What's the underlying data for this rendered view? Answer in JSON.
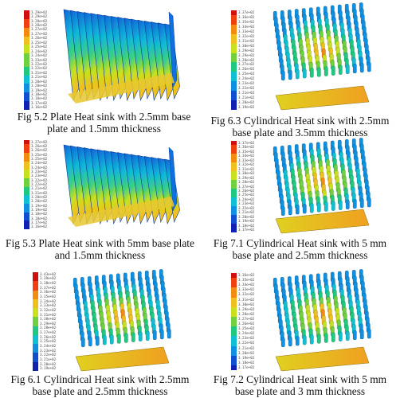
{
  "figures": [
    {
      "id": "fig52",
      "caption_line1": "Fig 5.2 Plate Heat sink with 2.5mm base",
      "caption_line2": "plate and 1.5mm thickness",
      "legend": [
        "3.29e+02",
        "3.29e+02",
        "3.28e+02",
        "3.28e+02",
        "3.27e+02",
        "3.27e+02",
        "3.26e+02",
        "3.25e+02",
        "3.25e+02",
        "3.24e+02",
        "3.24e+02",
        "3.23e+02",
        "3.22e+02",
        "3.22e+02",
        "3.21e+02",
        "3.21e+02",
        "3.20e+02",
        "3.20e+02",
        "3.19e+02",
        "3.18e+02",
        "3.18e+02",
        "3.17e+02",
        "3.16e+02"
      ],
      "type": "plate"
    },
    {
      "id": "fig63",
      "caption_line1": "Fig 6.3 Cylindrical Heat sink with 2.5mm",
      "caption_line2": "base plate and 3.5mm thickness",
      "legend": [
        "3.37e+02",
        "3.36e+02",
        "3.35e+02",
        "3.34e+02",
        "3.33e+02",
        "3.32e+02",
        "3.31e+02",
        "3.30e+02",
        "3.29e+02",
        "3.29e+02",
        "3.28e+02",
        "3.27e+02",
        "3.26e+02",
        "3.25e+02",
        "3.24e+02",
        "3.23e+02",
        "3.22e+02",
        "3.21e+02",
        "3.21e+02",
        "3.20e+02",
        "3.19e+02"
      ],
      "type": "pin"
    },
    {
      "id": "fig53",
      "caption_line1": "Fig 5.3 Plate Heat sink with 5mm base plate",
      "caption_line2": "and 1.5mm thickness",
      "legend": [
        "3.27e+02",
        "3.26e+02",
        "3.26e+02",
        "3.25e+02",
        "3.25e+02",
        "3.24e+02",
        "3.24e+02",
        "3.23e+02",
        "3.23e+02",
        "3.22e+02",
        "3.22e+02",
        "3.21e+02",
        "3.21e+02",
        "3.20e+02",
        "3.20e+02",
        "3.19e+02",
        "3.19e+02",
        "3.18e+02",
        "3.18e+02",
        "3.17e+02",
        "3.16e+02"
      ],
      "type": "plate"
    },
    {
      "id": "fig71",
      "caption_line1": "Fig 7.1 Cylindrical Heat sink with 5 mm",
      "caption_line2": "base plate and 2.5mm thickness",
      "legend": [
        "3.37e+02",
        "3.36e+02",
        "3.35e+02",
        "3.34e+02",
        "3.33e+02",
        "3.32e+02",
        "3.31e+02",
        "3.30e+02",
        "3.29e+02",
        "3.28e+02",
        "3.27e+02",
        "3.26e+02",
        "3.25e+02",
        "3.24e+02",
        "3.23e+02",
        "3.22e+02",
        "3.21e+02",
        "3.20e+02",
        "3.19e+02",
        "3.18e+02",
        "3.17e+02"
      ],
      "type": "pin"
    },
    {
      "id": "fig61",
      "caption_line1": "Fig 6.1 Cylindrical Heat sink with 2.5mm",
      "caption_line2": "base plate and 2.5mm thickness",
      "legend": [
        "3.43e+02",
        "3.39e+02",
        "3.38e+02",
        "3.37e+02",
        "3.36e+02",
        "3.35e+02",
        "3.34e+02",
        "3.33e+02",
        "3.32e+02",
        "3.31e+02",
        "3.30e+02",
        "3.29e+02",
        "3.28e+02",
        "3.27e+02",
        "3.26e+02",
        "3.25e+02",
        "3.24e+02",
        "3.23e+02",
        "3.22e+02",
        "3.21e+02",
        "3.20e+02",
        "3.19e+02"
      ],
      "type": "pin"
    },
    {
      "id": "fig72",
      "caption_line1": "Fig 7.2 Cylindrical Heat sink with 5 mm",
      "caption_line2": "base plate and 3 mm thickness",
      "legend": [
        "3.36e+02",
        "3.35e+02",
        "3.34e+02",
        "3.33e+02",
        "3.32e+02",
        "3.31e+02",
        "3.30e+02",
        "3.29e+02",
        "3.28e+02",
        "3.27e+02",
        "3.26e+02",
        "3.25e+02",
        "3.24e+02",
        "3.23e+02",
        "3.22e+02",
        "3.21e+02",
        "3.20e+02",
        "3.19e+02",
        "3.18e+02",
        "3.17e+02"
      ],
      "type": "pin"
    }
  ],
  "colormap": [
    "#d01010",
    "#f04010",
    "#f58a10",
    "#f0c020",
    "#c8e020",
    "#70d040",
    "#20c880",
    "#10c0d0",
    "#1090e0",
    "#1050d0",
    "#1020b0"
  ]
}
